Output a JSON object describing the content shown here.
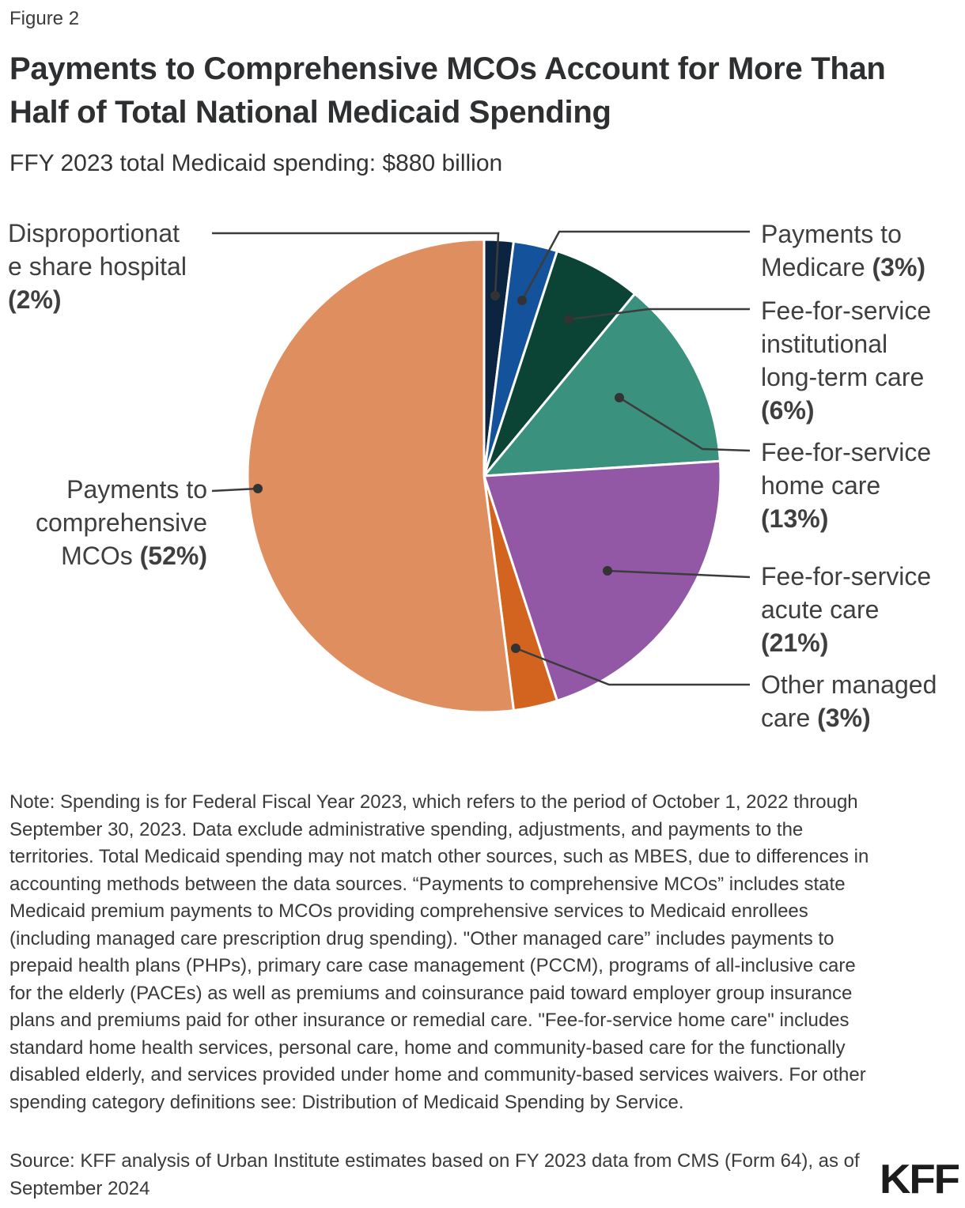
{
  "figure_label": "Figure 2",
  "title": "Payments to Comprehensive MCOs Account for More Than Half of Total National Medicaid Spending",
  "subtitle": "FFY 2023 total Medicaid spending: $880 billion",
  "chart_data": {
    "type": "pie",
    "title": "Payments to Comprehensive MCOs Account for More Than Half of Total National Medicaid Spending",
    "total_label": "FFY 2023 total Medicaid spending: $880 billion",
    "unit": "%",
    "start_angle_deg_from_top": 0,
    "direction": "clockwise",
    "slices": [
      {
        "label": "Disproportionate share hospital",
        "value": 2,
        "color": "#0b2540"
      },
      {
        "label": "Payments to Medicare",
        "value": 3,
        "color": "#14539b"
      },
      {
        "label": "Fee-for-service institutional long-term care",
        "value": 6,
        "color": "#0b4434"
      },
      {
        "label": "Fee-for-service home care",
        "value": 13,
        "color": "#3a917d"
      },
      {
        "label": "Fee-for-service acute care",
        "value": 21,
        "color": "#9257a5"
      },
      {
        "label": "Other managed care",
        "value": 3,
        "color": "#d2641f"
      },
      {
        "label": "Payments to comprehensive MCOs",
        "value": 52,
        "color": "#df8f5f"
      }
    ],
    "slice_border_color": "#ffffff",
    "leader_line_color": "#3c3c3c"
  },
  "callouts": {
    "dsh": {
      "text": "Disproportionat\ne share hospital\n",
      "pct": "(2%)"
    },
    "mcos": {
      "text": "Payments to\ncomprehensive\nMCOs ",
      "pct": "(52%)"
    },
    "medicare": {
      "text": "Payments to\nMedicare ",
      "pct": "(3%)"
    },
    "ffs_inst": {
      "text": "Fee-for-service\ninstitutional\nlong-term care\n",
      "pct": "(6%)"
    },
    "ffs_home": {
      "text": "Fee-for-service\nhome care\n",
      "pct": "(13%)"
    },
    "ffs_acute": {
      "text": "Fee-for-service\nacute care\n",
      "pct": "(21%)"
    },
    "other": {
      "text": "Other managed\ncare ",
      "pct": "(3%)"
    }
  },
  "note": "Note: Spending is for Federal Fiscal Year 2023, which refers to the period of October 1, 2022 through September 30, 2023. Data exclude administrative spending, adjustments, and payments to the territories. Total Medicaid spending may not match other sources, such as MBES, due to differences in accounting methods between the data sources. “Payments to comprehensive MCOs” includes state Medicaid premium payments to MCOs providing comprehensive services to Medicaid enrollees (including managed care prescription drug spending). \"Other managed care” includes payments to prepaid health plans (PHPs), primary care case management (PCCM), programs of all-inclusive care for the elderly (PACEs) as well as premiums and coinsurance paid toward employer group insurance plans and premiums paid for other insurance or remedial care. \"Fee-for-service home care\" includes standard home health services, personal care, home and community-based care for the functionally disabled elderly, and services provided under home and community-based services waivers. For other spending category definitions see: Distribution of Medicaid Spending by Service.",
  "source": "Source: KFF analysis of Urban Institute estimates based on FY 2023 data from CMS (Form 64), as of September 2024",
  "logo": "KFF"
}
